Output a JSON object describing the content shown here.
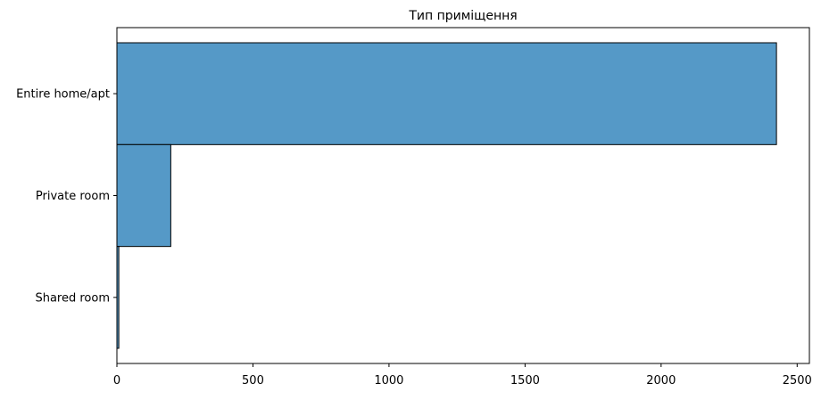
{
  "chart_data": {
    "type": "bar",
    "orientation": "horizontal",
    "title": "Тип приміщення",
    "xlabel": "",
    "ylabel": "",
    "categories": [
      "Entire home/apt",
      "Private room",
      "Shared room"
    ],
    "values": [
      2424,
      198,
      7
    ],
    "xlim": [
      0,
      2545
    ],
    "xticks": [
      0,
      500,
      1000,
      1500,
      2000,
      2500
    ],
    "xtick_labels": [
      "0",
      "500",
      "1000",
      "1500",
      "2000",
      "2500"
    ],
    "grid": false,
    "legend": "none",
    "bar_color": "#5599c7",
    "edge_color": "#000000"
  }
}
